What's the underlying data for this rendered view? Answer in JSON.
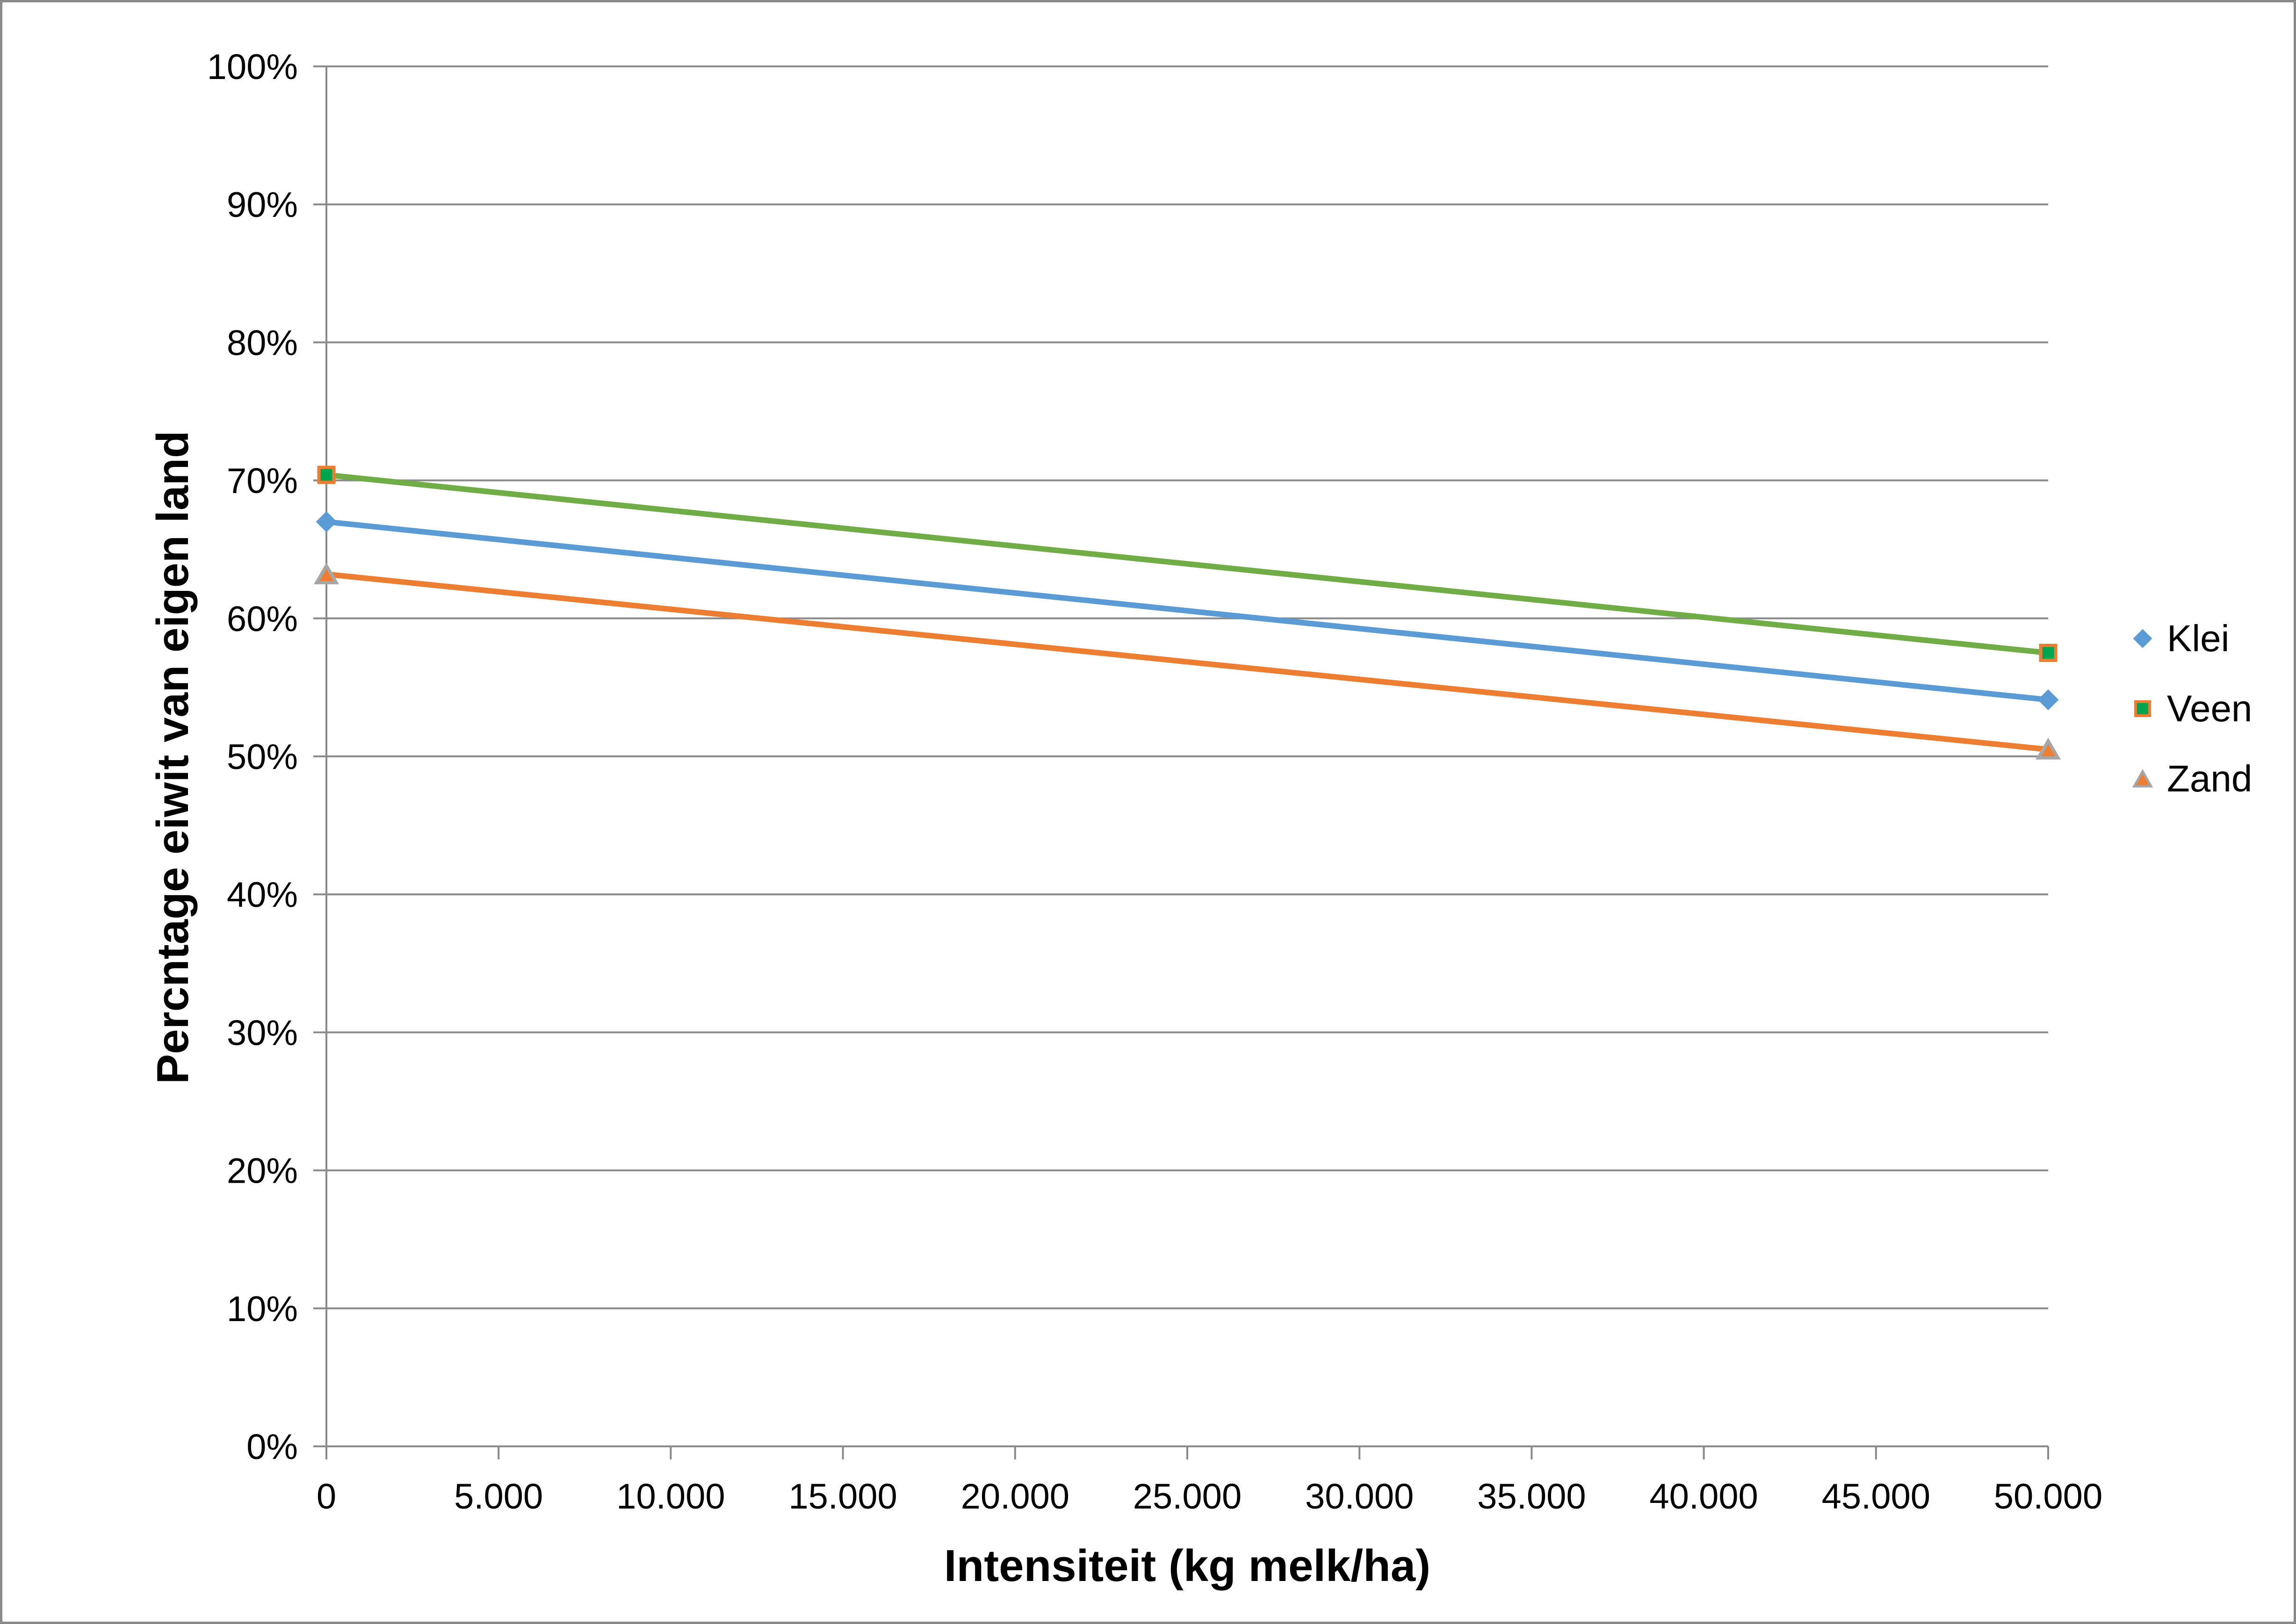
{
  "page": {
    "background_color": "#ffffff",
    "border_color": "#8a8a8a"
  },
  "chart_data": {
    "type": "line",
    "title": "",
    "xlabel": "Intensiteit (kg melk/ha)",
    "ylabel": "Percntage eiwit van eigen land",
    "x": [
      0,
      50000
    ],
    "series": [
      {
        "name": "Klei",
        "values": [
          67.0,
          54.1
        ],
        "line_color": "#5b9bd5",
        "marker": "diamond",
        "marker_fill": "#5b9bd5",
        "marker_border": "#5b9bd5"
      },
      {
        "name": "Veen",
        "values": [
          70.4,
          57.5
        ],
        "line_color": "#70ad47",
        "marker": "square",
        "marker_fill": "#00a550",
        "marker_border": "#ed7d31"
      },
      {
        "name": "Zand",
        "values": [
          63.2,
          50.5
        ],
        "line_color": "#ed7d31",
        "marker": "triangle",
        "marker_fill": "#ed7d31",
        "marker_border": "#a6a6a6"
      }
    ],
    "xlim": [
      0,
      50000
    ],
    "ylim": [
      0,
      100
    ],
    "x_tick_values": [
      0,
      5000,
      10000,
      15000,
      20000,
      25000,
      30000,
      35000,
      40000,
      45000,
      50000
    ],
    "x_tick_labels": [
      "0",
      "5.000",
      "10.000",
      "15.000",
      "20.000",
      "25.000",
      "30.000",
      "35.000",
      "40.000",
      "45.000",
      "50.000"
    ],
    "y_tick_values": [
      0,
      10,
      20,
      30,
      40,
      50,
      60,
      70,
      80,
      90,
      100
    ],
    "y_tick_labels": [
      "0%",
      "10%",
      "20%",
      "30%",
      "40%",
      "50%",
      "60%",
      "70%",
      "80%",
      "90%",
      "100%"
    ],
    "grid": "horizontal",
    "grid_color": "#8a8a8a",
    "axis_color": "#8a8a8a",
    "legend_position": "right",
    "legend_entries": [
      "Klei",
      "Veen",
      "Zand"
    ]
  }
}
